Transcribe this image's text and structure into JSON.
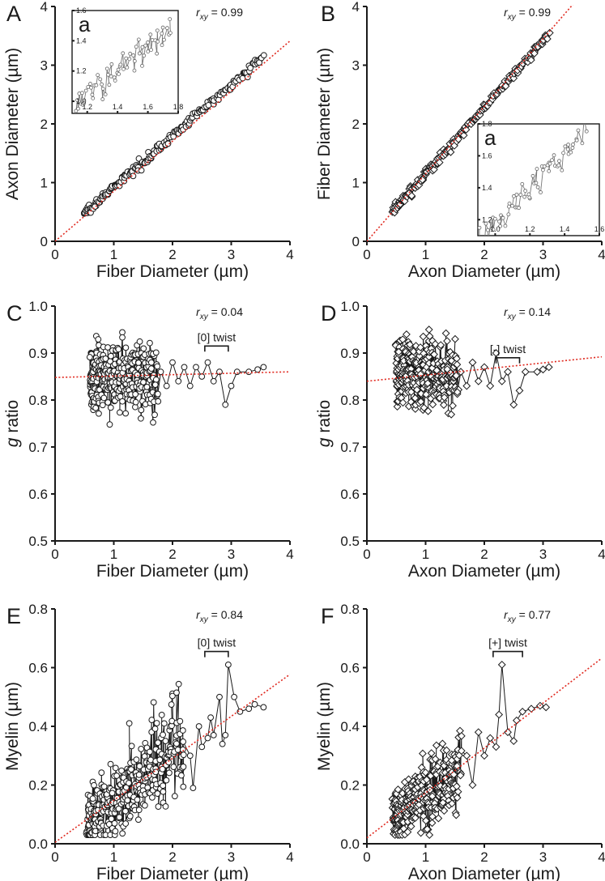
{
  "chart_data": [
    {
      "panel": "A",
      "type": "scatter",
      "xlabel": "Fiber Diameter (µm)",
      "ylabel": "Axon Diameter (µm)",
      "xlim": [
        0,
        4
      ],
      "ylim": [
        0,
        4
      ],
      "xticks": [
        "0",
        "1",
        "2",
        "3",
        "4"
      ],
      "yticks": [
        "0",
        "1",
        "2",
        "3",
        "4"
      ],
      "rxy": {
        "symbol": "r",
        "sub": "xy",
        "text": " = 0.99"
      },
      "marker": "circle",
      "fit": {
        "slope": 0.853,
        "intercept": 0.0
      },
      "cluster": {
        "x0": 0.5,
        "x1": 3.55,
        "center": [
          0.92,
          0.85
        ],
        "slope": 0.875,
        "noise": 0.035,
        "count": 230
      },
      "inset": {
        "label": "a",
        "xlim": [
          1.1,
          1.8
        ],
        "ylim": [
          0.92,
          1.6
        ],
        "xticks": [
          "1.2",
          "1.4",
          "1.6",
          "1.8"
        ],
        "yticks": [
          "1.0",
          "1.2",
          "1.4",
          "1.6"
        ],
        "cluster": {
          "x0": 1.1,
          "x1": 1.75,
          "slope": 0.82,
          "intercept": 0.05,
          "noise": 0.05,
          "count": 70
        }
      }
    },
    {
      "panel": "B",
      "type": "scatter",
      "xlabel": "Axon Diameter (µm)",
      "ylabel": "Fiber Diameter (µm)",
      "xlim": [
        0,
        4
      ],
      "ylim": [
        0,
        4
      ],
      "xticks": [
        "0",
        "1",
        "2",
        "3",
        "4"
      ],
      "yticks": [
        "0",
        "1",
        "2",
        "3",
        "4"
      ],
      "rxy": {
        "symbol": "r",
        "sub": "xy",
        "text": " = 0.99"
      },
      "marker": "diamond",
      "fit": {
        "slope": 1.15,
        "intercept": 0.0
      },
      "cluster": {
        "x0": 0.45,
        "x1": 3.1,
        "center": [
          0.8,
          0.92
        ],
        "slope": 1.13,
        "noise": 0.04,
        "count": 230
      },
      "inset": {
        "label": "a",
        "xlim": [
          0.9,
          1.6
        ],
        "ylim": [
          1.1,
          1.8
        ],
        "xticks": [
          "1.0",
          "1.2",
          "1.4",
          "1.6"
        ],
        "yticks": [
          "1.2",
          "1.4",
          "1.6",
          "1.8"
        ],
        "cluster": {
          "x0": 0.9,
          "x1": 1.52,
          "slope": 1.1,
          "intercept": 0.08,
          "noise": 0.05,
          "count": 70
        }
      }
    },
    {
      "panel": "C",
      "type": "scatter",
      "xlabel": "Fiber Diameter (µm)",
      "ylabel": "g ratio",
      "ylabel_italic": "g",
      "ylabel_rest": " ratio",
      "xlim": [
        0,
        4
      ],
      "ylim": [
        0.5,
        1.0
      ],
      "xticks": [
        "0",
        "1",
        "2",
        "3",
        "4"
      ],
      "yticks": [
        "0.5",
        "0.6",
        "0.7",
        "0.8",
        "0.9",
        "1.0"
      ],
      "rxy": {
        "symbol": "r",
        "sub": "xy",
        "text": " = 0.04"
      },
      "marker": "circle",
      "fit": {
        "slope": 0.003,
        "intercept": 0.848
      },
      "twist": {
        "label": "[0] twist",
        "x0": 2.55,
        "x1": 2.95,
        "y": 0.915
      },
      "cluster": {
        "x0": 0.6,
        "x1": 1.75,
        "mean": 0.85,
        "spread": 0.065,
        "count": 330
      },
      "tail": [
        [
          1.8,
          0.86
        ],
        [
          1.9,
          0.83
        ],
        [
          2.0,
          0.88
        ],
        [
          2.1,
          0.84
        ],
        [
          2.2,
          0.87
        ],
        [
          2.3,
          0.83
        ],
        [
          2.4,
          0.87
        ],
        [
          2.5,
          0.85
        ],
        [
          2.6,
          0.88
        ],
        [
          2.7,
          0.84
        ],
        [
          2.8,
          0.86
        ],
        [
          2.9,
          0.79
        ],
        [
          3.0,
          0.83
        ],
        [
          3.1,
          0.86
        ],
        [
          3.3,
          0.86
        ],
        [
          3.45,
          0.865
        ],
        [
          3.55,
          0.87
        ]
      ]
    },
    {
      "panel": "D",
      "type": "scatter",
      "xlabel": "Axon Diameter (µm)",
      "ylabel": "g ratio",
      "ylabel_italic": "g",
      "ylabel_rest": " ratio",
      "xlim": [
        0,
        4
      ],
      "ylim": [
        0.5,
        1.0
      ],
      "xticks": [
        "0",
        "1",
        "2",
        "3",
        "4"
      ],
      "yticks": [
        "0.5",
        "0.6",
        "0.7",
        "0.8",
        "0.9",
        "1.0"
      ],
      "rxy": {
        "symbol": "r",
        "sub": "xy",
        "text": " = 0.14"
      },
      "marker": "diamond",
      "fit": {
        "slope": 0.013,
        "intercept": 0.84
      },
      "twist": {
        "label": "[-] twist",
        "x0": 2.2,
        "x1": 2.6,
        "y": 0.89
      },
      "cluster": {
        "x0": 0.5,
        "x1": 1.55,
        "mean": 0.855,
        "spread": 0.065,
        "count": 330
      },
      "tail": [
        [
          1.6,
          0.86
        ],
        [
          1.7,
          0.83
        ],
        [
          1.8,
          0.88
        ],
        [
          1.9,
          0.84
        ],
        [
          2.0,
          0.87
        ],
        [
          2.1,
          0.83
        ],
        [
          2.2,
          0.9
        ],
        [
          2.3,
          0.84
        ],
        [
          2.4,
          0.86
        ],
        [
          2.5,
          0.79
        ],
        [
          2.6,
          0.82
        ],
        [
          2.7,
          0.86
        ],
        [
          2.9,
          0.86
        ],
        [
          3.0,
          0.865
        ],
        [
          3.1,
          0.87
        ]
      ]
    },
    {
      "panel": "E",
      "type": "scatter",
      "xlabel": "Fiber Diameter (µm)",
      "ylabel": "Myelin (µm)",
      "xlim": [
        0,
        4
      ],
      "ylim": [
        0,
        0.8
      ],
      "xticks": [
        "0",
        "1",
        "2",
        "3",
        "4"
      ],
      "yticks": [
        "0.0",
        "0.2",
        "0.4",
        "0.6",
        "0.8"
      ],
      "rxy": {
        "symbol": "r",
        "sub": "xy",
        "text": " = 0.84"
      },
      "marker": "circle",
      "fit": {
        "slope": 0.143,
        "intercept": 0.005
      },
      "twist": {
        "label": "[0] twist",
        "x0": 2.55,
        "x1": 2.95,
        "y": 0.655
      },
      "cluster": {
        "x0": 0.55,
        "x1": 2.2,
        "slope": 0.16,
        "intercept": -0.01,
        "noise": 0.06,
        "count": 330
      },
      "tail": [
        [
          2.3,
          0.3
        ],
        [
          2.35,
          0.19
        ],
        [
          2.45,
          0.4
        ],
        [
          2.5,
          0.33
        ],
        [
          2.6,
          0.36
        ],
        [
          2.65,
          0.43
        ],
        [
          2.7,
          0.37
        ],
        [
          2.8,
          0.5
        ],
        [
          2.85,
          0.34
        ],
        [
          2.9,
          0.37
        ],
        [
          2.95,
          0.61
        ],
        [
          3.05,
          0.5
        ],
        [
          3.15,
          0.45
        ],
        [
          3.3,
          0.46
        ],
        [
          3.4,
          0.475
        ],
        [
          3.55,
          0.465
        ]
      ]
    },
    {
      "panel": "F",
      "type": "scatter",
      "xlabel": "Axon Diameter (µm)",
      "ylabel": "Myelin (µm)",
      "xlim": [
        0,
        4
      ],
      "ylim": [
        0,
        0.8
      ],
      "xticks": [
        "0",
        "1",
        "2",
        "3",
        "4"
      ],
      "yticks": [
        "0.0",
        "0.2",
        "0.4",
        "0.6",
        "0.8"
      ],
      "rxy": {
        "symbol": "r",
        "sub": "xy",
        "text": " = 0.77"
      },
      "marker": "diamond",
      "fit": {
        "slope": 0.153,
        "intercept": 0.02
      },
      "twist": {
        "label": "[+] twist",
        "x0": 2.15,
        "x1": 2.65,
        "y": 0.655
      },
      "cluster": {
        "x0": 0.45,
        "x1": 1.6,
        "slope": 0.14,
        "intercept": 0.03,
        "noise": 0.055,
        "count": 330
      },
      "tail": [
        [
          1.7,
          0.3
        ],
        [
          1.8,
          0.2
        ],
        [
          1.9,
          0.38
        ],
        [
          2.0,
          0.3
        ],
        [
          2.1,
          0.36
        ],
        [
          2.2,
          0.33
        ],
        [
          2.25,
          0.44
        ],
        [
          2.3,
          0.61
        ],
        [
          2.4,
          0.38
        ],
        [
          2.5,
          0.35
        ],
        [
          2.55,
          0.42
        ],
        [
          2.65,
          0.45
        ],
        [
          2.8,
          0.46
        ],
        [
          2.95,
          0.47
        ],
        [
          3.05,
          0.465
        ]
      ]
    }
  ]
}
